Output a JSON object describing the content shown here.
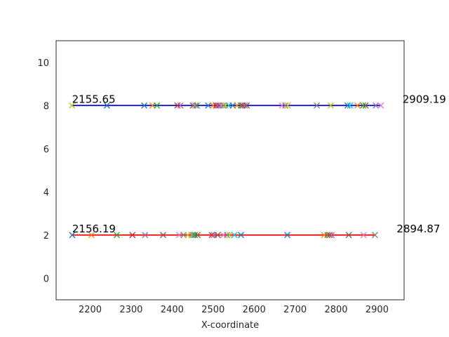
{
  "chart_data": {
    "type": "scatter",
    "xlabel": "X-coordinate",
    "ylabel": "",
    "xlim": [
      2117,
      2966
    ],
    "ylim": [
      -1,
      11
    ],
    "xticks": [
      2200,
      2300,
      2400,
      2500,
      2600,
      2700,
      2800,
      2900
    ],
    "yticks": [
      0,
      2,
      4,
      6,
      8,
      10
    ],
    "grid": false,
    "marker": "x",
    "series": [
      {
        "y": 8,
        "line_color": "#0000cc",
        "line_range": [
          2155.65,
          2909.19
        ],
        "start_label": "2155.65",
        "end_label": "2909.19",
        "x": [
          2155.65,
          2241,
          2332,
          2352,
          2363,
          2413,
          2420,
          2451,
          2456,
          2460,
          2488,
          2500,
          2507,
          2511,
          2515,
          2520,
          2525,
          2530,
          2538,
          2548,
          2558,
          2568,
          2572,
          2577,
          2582,
          2668,
          2676,
          2682,
          2753,
          2787,
          2828,
          2834,
          2852,
          2866,
          2872,
          2897,
          2909.19
        ],
        "colors": [
          "#bcbd22",
          "#1f77b4",
          "#1f77b4",
          "#ff7f0e",
          "#2ca02c",
          "#d62728",
          "#9467bd",
          "#8c564b",
          "#e377c2",
          "#2ca02c",
          "#1f77b4",
          "#ff7f0e",
          "#d62728",
          "#9467bd",
          "#8c564b",
          "#e377c2",
          "#7f7f7f",
          "#bcbd22",
          "#17becf",
          "#1f77b4",
          "#ff7f0e",
          "#2ca02c",
          "#d62728",
          "#9467bd",
          "#8c564b",
          "#e377c2",
          "#7f7f7f",
          "#bcbd22",
          "#7f7f7f",
          "#bcbd22",
          "#1f77b4",
          "#17becf",
          "#ff7f0e",
          "#2ca02c",
          "#8c564b",
          "#9467bd",
          "#e377c2"
        ]
      },
      {
        "y": 2,
        "line_color": "#ee0000",
        "line_range": [
          2156.19,
          2894.87
        ],
        "start_label": "2156.19",
        "end_label": "2894.87",
        "x": [
          2156.19,
          2203,
          2265,
          2303,
          2334,
          2378,
          2417,
          2428,
          2438,
          2448,
          2452,
          2456,
          2462,
          2497,
          2502,
          2511,
          2525,
          2534,
          2540,
          2552,
          2568,
          2681,
          2771,
          2779,
          2784,
          2789,
          2831,
          2867,
          2894.87
        ],
        "colors": [
          "#1f77b4",
          "#ff7f0e",
          "#2ca02c",
          "#d62728",
          "#9467bd",
          "#8c564b",
          "#e377c2",
          "#7f7f7f",
          "#bcbd22",
          "#ff7f0e",
          "#17becf",
          "#2ca02c",
          "#8c564b",
          "#d62728",
          "#9467bd",
          "#8c564b",
          "#e377c2",
          "#7f7f7f",
          "#bcbd22",
          "#17becf",
          "#1f77b4",
          "#1f77b4",
          "#ff7f0e",
          "#2ca02c",
          "#d62728",
          "#9467bd",
          "#8c564b",
          "#e377c2",
          "#7f7f7f"
        ]
      }
    ]
  }
}
